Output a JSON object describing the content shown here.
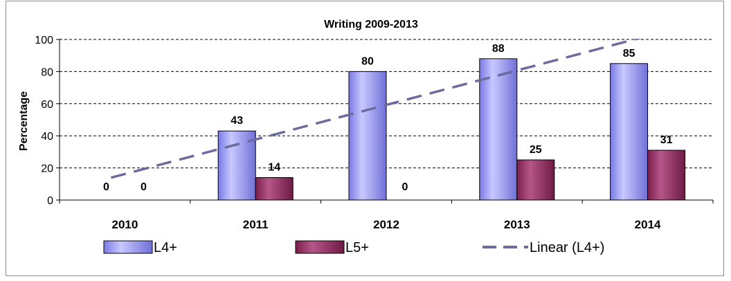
{
  "chart_data": {
    "type": "bar",
    "title": "Writing 2009-2013",
    "xlabel": "",
    "ylabel": "Percentage",
    "ylim": [
      0,
      100
    ],
    "yticks": [
      0,
      20,
      40,
      60,
      80,
      100
    ],
    "grid": true,
    "legend_position": "bottom",
    "categories": [
      "2010",
      "2011",
      "2012",
      "2013",
      "2014"
    ],
    "series": [
      {
        "name": "L4+",
        "values": [
          0,
          43,
          80,
          88,
          85
        ],
        "color": "#9999ff"
      },
      {
        "name": "L5+",
        "values": [
          0,
          14,
          0,
          25,
          31
        ],
        "color": "#993366"
      }
    ],
    "trendline": {
      "name": "Linear (L4+)",
      "type": "linear",
      "of_series": "L4+",
      "color": "#6b6b9e",
      "style": "dashed"
    }
  }
}
